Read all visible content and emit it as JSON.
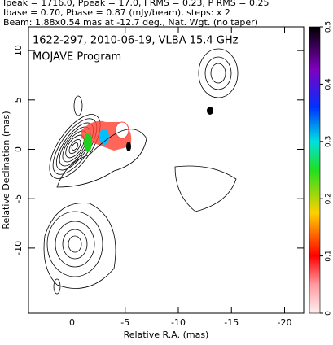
{
  "chart_data": {
    "type": "contour",
    "header": [
      "Ipeak = 1716.0, Ppeak = 17.0, I RMS = 0.23, P RMS = 0.25",
      "Ibase = 0.70, Pbase = 0.87 (mJy/beam), steps: x 2",
      "Beam: 1.88x0.54 mas at -12.7 deg., Nat. Wgt. (no taper)"
    ],
    "title": "1622-297, 2010-06-19, VLBA 15.4 GHz",
    "subtitle": "MOJAVE Program",
    "xlabel": "Relative R.A. (mas)",
    "ylabel": "Relative Declination (mas)",
    "xlim": [
      4.1,
      -21.8
    ],
    "xticks": [
      0,
      -5,
      -10,
      -15,
      -20
    ],
    "ylim": [
      -16.6,
      12.4
    ],
    "yticks": [
      -10,
      -5,
      0,
      5,
      10
    ],
    "clim": [
      0,
      0.5
    ],
    "cticks": [
      0,
      0.1,
      0.2,
      0.3,
      0.4,
      0.5
    ]
  }
}
